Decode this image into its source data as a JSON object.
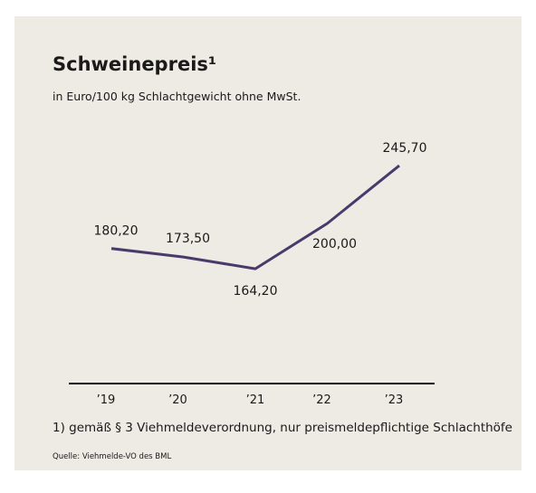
{
  "chart_data": {
    "type": "line",
    "title": "Schweinepreis¹",
    "subtitle": "in Euro/100 kg Schlachtgewicht ohne MwSt.",
    "categories": [
      "’19",
      "’20",
      "’21",
      "’22",
      "’23"
    ],
    "values": [
      180.2,
      173.5,
      164.2,
      200.0,
      245.7
    ],
    "value_labels": [
      "180,20",
      "173,50",
      "164,20",
      "200,00",
      "245,70"
    ],
    "color": "#4a3a6c",
    "ylim": [
      80,
      260
    ],
    "footnote": "1) gemäß § 3 Viehmeldeverordnung, nur preismeldepflichtige Schlachthöfe",
    "source": "Quelle: Viehmelde-VO des BML"
  }
}
